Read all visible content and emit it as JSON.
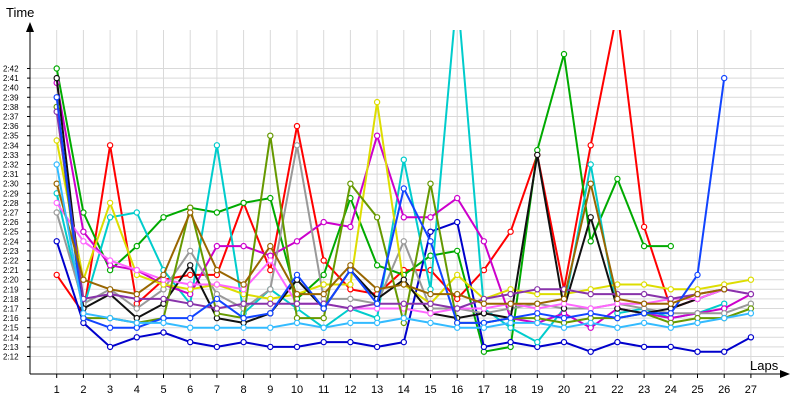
{
  "chart_data": {
    "type": "line",
    "xlabel": "Laps",
    "ylabel": "Time",
    "x": [
      1,
      2,
      3,
      4,
      5,
      6,
      7,
      8,
      9,
      10,
      11,
      12,
      13,
      14,
      15,
      16,
      17,
      18,
      19,
      20,
      21,
      22,
      23,
      24,
      25,
      26,
      27
    ],
    "y_ticks": [
      "2:12",
      "2:13",
      "2:14",
      "2:15",
      "2:16",
      "2:17",
      "2:18",
      "2:19",
      "2:20",
      "2:21",
      "2:22",
      "2:23",
      "2:24",
      "2:25",
      "2:26",
      "2:27",
      "2:28",
      "2:29",
      "2:30",
      "2:31",
      "2:32",
      "2:33",
      "2:34",
      "2:35",
      "2:36",
      "2:37",
      "2:38",
      "2:39",
      "2:40",
      "2:41",
      "2:42"
    ],
    "ylim": [
      "2:11.5",
      "2:44"
    ],
    "xlim": [
      0,
      27.5
    ],
    "grid": true,
    "series": [
      {
        "color": "#ff0000",
        "values": [
          140.5,
          136.5,
          154.0,
          137.5,
          140.0,
          140.5,
          140.5,
          148.0,
          141.0,
          156.0,
          142.0,
          139.0,
          138.5,
          141.0,
          141.0,
          138.0,
          141.0,
          145.0,
          153.0,
          139.0,
          154.0,
          168.0,
          145.5,
          137.0,
          138.0,
          null,
          null
        ]
      },
      {
        "color": "#00aa00",
        "values": [
          162.0,
          147.0,
          141.0,
          143.5,
          146.5,
          147.5,
          147.0,
          148.0,
          148.5,
          138.0,
          140.5,
          148.5,
          141.5,
          140.5,
          142.5,
          143.0,
          132.5,
          133.0,
          153.5,
          163.5,
          144.0,
          150.5,
          143.5,
          143.5,
          null,
          null,
          null
        ]
      },
      {
        "color": "#0000cc",
        "values": [
          144.0,
          135.5,
          133.0,
          134.0,
          134.5,
          133.5,
          133.0,
          133.5,
          133.0,
          133.0,
          133.5,
          133.5,
          133.0,
          133.5,
          145.0,
          146.0,
          133.0,
          133.5,
          133.0,
          133.5,
          132.5,
          133.5,
          133.0,
          133.0,
          132.5,
          132.5,
          134.0
        ]
      },
      {
        "color": "#00cccc",
        "values": [
          149.0,
          137.0,
          146.5,
          147.0,
          141.0,
          137.5,
          154.0,
          136.5,
          139.0,
          137.0,
          135.0,
          137.0,
          136.0,
          152.5,
          139.0,
          170.0,
          137.0,
          135.0,
          133.5,
          137.0,
          152.0,
          136.5,
          137.0,
          136.0,
          136.5,
          137.5,
          null
        ]
      },
      {
        "color": "#cc00cc",
        "values": [
          160.5,
          145.0,
          141.5,
          141.0,
          139.5,
          138.5,
          143.5,
          143.5,
          142.5,
          144.0,
          146.0,
          145.5,
          155.0,
          146.5,
          146.5,
          148.5,
          144.0,
          136.0,
          135.5,
          136.5,
          135.0,
          137.0,
          136.5,
          136.0,
          136.5,
          137.0,
          138.5
        ]
      },
      {
        "color": "#999999",
        "values": [
          147.0,
          137.5,
          139.0,
          137.0,
          139.0,
          143.0,
          138.5,
          137.0,
          139.0,
          154.0,
          138.0,
          138.0,
          137.5,
          144.0,
          137.0,
          137.0,
          136.5,
          137.0,
          137.5,
          137.0,
          137.0,
          137.5,
          137.0,
          136.5,
          136.5,
          136.5,
          137.5
        ]
      },
      {
        "color": "#dddd00",
        "values": [
          154.5,
          140.0,
          148.0,
          140.5,
          139.5,
          139.0,
          139.5,
          138.5,
          138.0,
          138.5,
          139.5,
          139.5,
          158.5,
          139.5,
          137.5,
          140.5,
          138.0,
          139.0,
          138.5,
          138.5,
          139.0,
          139.5,
          139.5,
          139.0,
          139.0,
          139.5,
          140.0
        ]
      },
      {
        "color": "#111111",
        "values": [
          161.0,
          137.0,
          138.5,
          136.0,
          137.5,
          141.5,
          136.0,
          135.5,
          136.5,
          140.0,
          137.0,
          141.0,
          138.0,
          140.0,
          136.5,
          136.0,
          136.5,
          136.0,
          153.0,
          137.0,
          146.5,
          137.0,
          136.5,
          137.0,
          138.0,
          139.0,
          null
        ]
      },
      {
        "color": "#ff66ff",
        "values": [
          148.0,
          144.0,
          142.0,
          141.0,
          140.0,
          139.5,
          139.5,
          139.0,
          142.0,
          137.5,
          137.5,
          137.0,
          137.0,
          137.0,
          136.5,
          137.0,
          137.0,
          137.5,
          137.0,
          137.5,
          137.0,
          137.5,
          137.5,
          138.0,
          138.0,
          139.0,
          138.5
        ]
      },
      {
        "color": "#669900",
        "values": [
          158.0,
          136.0,
          136.0,
          135.5,
          136.0,
          147.5,
          136.5,
          136.0,
          155.0,
          136.0,
          136.0,
          150.0,
          146.5,
          135.5,
          150.0,
          135.5,
          135.5,
          136.0,
          136.0,
          135.5,
          136.0,
          136.0,
          136.5,
          135.5,
          136.0,
          136.0,
          137.0
        ]
      },
      {
        "color": "#8833aa",
        "values": [
          157.5,
          138.0,
          138.5,
          138.0,
          138.0,
          137.5,
          137.0,
          137.5,
          137.5,
          137.5,
          137.5,
          137.0,
          137.5,
          137.5,
          137.5,
          137.0,
          138.0,
          138.5,
          139.0,
          139.0,
          138.5,
          138.5,
          138.5,
          138.0,
          138.5,
          139.0,
          138.5
        ]
      },
      {
        "color": "#1144ff",
        "values": [
          159.0,
          136.0,
          135.0,
          135.0,
          136.0,
          136.0,
          138.0,
          136.0,
          136.5,
          140.5,
          137.0,
          141.0,
          137.5,
          149.5,
          144.0,
          135.5,
          135.5,
          136.0,
          136.5,
          136.0,
          136.5,
          136.0,
          136.5,
          136.5,
          140.5,
          161.0,
          null
        ]
      },
      {
        "color": "#996600",
        "values": [
          150.0,
          140.0,
          139.0,
          138.5,
          140.5,
          147.0,
          141.0,
          139.5,
          143.5,
          138.5,
          138.5,
          141.5,
          139.0,
          139.5,
          138.5,
          138.5,
          137.5,
          137.5,
          137.5,
          138.0,
          150.0,
          138.0,
          137.5,
          137.5,
          138.5,
          139.0,
          null
        ]
      },
      {
        "color": "#33bbff",
        "values": [
          152.0,
          136.5,
          136.0,
          135.5,
          135.5,
          135.0,
          135.0,
          135.0,
          135.0,
          135.5,
          135.0,
          135.5,
          135.5,
          136.0,
          135.5,
          135.0,
          135.0,
          135.5,
          135.5,
          135.0,
          135.5,
          135.0,
          135.5,
          135.0,
          135.5,
          136.0,
          136.5
        ]
      }
    ]
  }
}
